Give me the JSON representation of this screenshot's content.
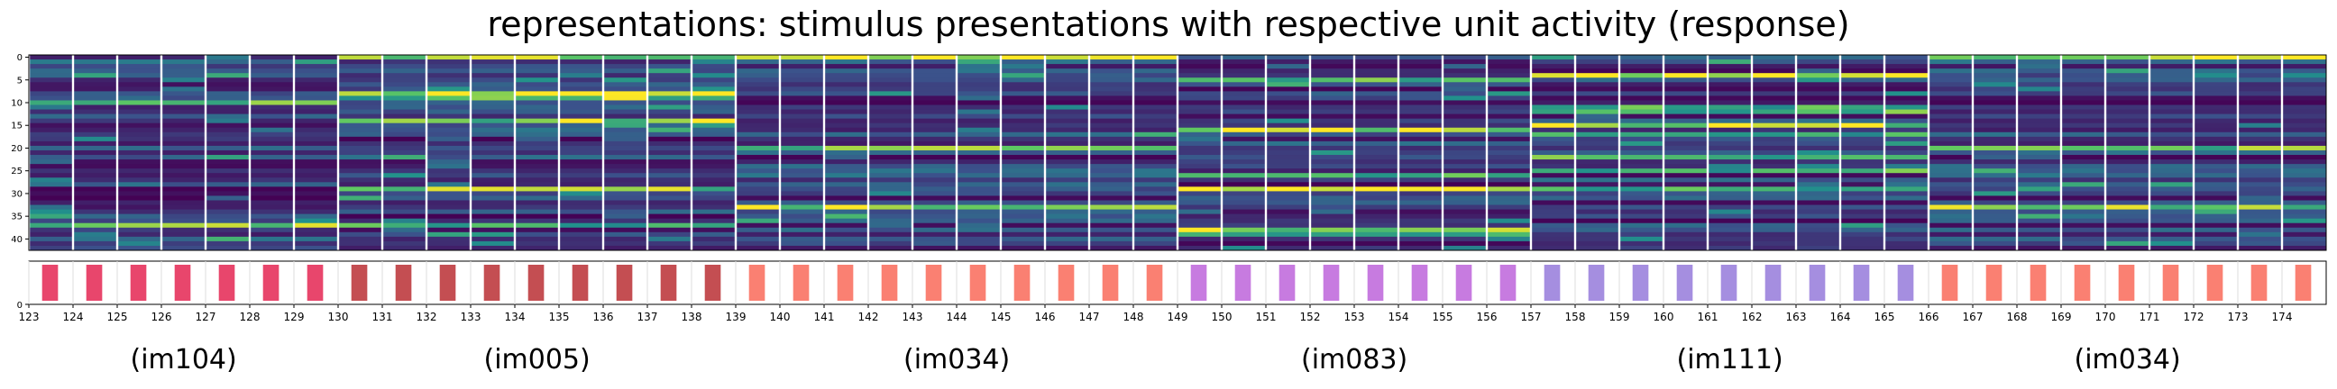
{
  "chart_data": {
    "type": "heatmap",
    "title": "representations: stimulus presentations with respective unit activity (response)",
    "heatmap": {
      "y_ticks": [
        "0",
        "5",
        "10",
        "15",
        "20",
        "25",
        "30",
        "35",
        "40"
      ],
      "n_units": 43,
      "colormap": [
        "#440154",
        "#3b528b",
        "#21918c",
        "#5ec962",
        "#fde725"
      ]
    },
    "stimulus_strip": {
      "y_tick": "0",
      "x_ticks": [
        "123",
        "124",
        "125",
        "126",
        "127",
        "128",
        "129",
        "130",
        "131",
        "132",
        "133",
        "134",
        "135",
        "136",
        "137",
        "138",
        "139",
        "140",
        "141",
        "142",
        "143",
        "144",
        "145",
        "146",
        "147",
        "148",
        "149",
        "150",
        "151",
        "152",
        "153",
        "154",
        "155",
        "156",
        "157",
        "158",
        "159",
        "160",
        "161",
        "162",
        "163",
        "164",
        "165",
        "166",
        "167",
        "168",
        "169",
        "170",
        "171",
        "172",
        "173",
        "174"
      ],
      "presentations": [
        {
          "x": 123,
          "image": "im104",
          "color": "#e8466c"
        },
        {
          "x": 124,
          "image": "im104",
          "color": "#e8466c"
        },
        {
          "x": 125,
          "image": "im104",
          "color": "#e8466c"
        },
        {
          "x": 126,
          "image": "im104",
          "color": "#e8466c"
        },
        {
          "x": 127,
          "image": "im104",
          "color": "#e8466c"
        },
        {
          "x": 128,
          "image": "im104",
          "color": "#e8466c"
        },
        {
          "x": 129,
          "image": "im104",
          "color": "#e8466c"
        },
        {
          "x": 130,
          "image": "im005",
          "color": "#c44e52"
        },
        {
          "x": 131,
          "image": "im005",
          "color": "#c44e52"
        },
        {
          "x": 132,
          "image": "im005",
          "color": "#c44e52"
        },
        {
          "x": 133,
          "image": "im005",
          "color": "#c44e52"
        },
        {
          "x": 134,
          "image": "im005",
          "color": "#c44e52"
        },
        {
          "x": 135,
          "image": "im005",
          "color": "#c44e52"
        },
        {
          "x": 136,
          "image": "im005",
          "color": "#c44e52"
        },
        {
          "x": 137,
          "image": "im005",
          "color": "#c44e52"
        },
        {
          "x": 138,
          "image": "im005",
          "color": "#c44e52"
        },
        {
          "x": 139,
          "image": "im034",
          "color": "#fa8072"
        },
        {
          "x": 140,
          "image": "im034",
          "color": "#fa8072"
        },
        {
          "x": 141,
          "image": "im034",
          "color": "#fa8072"
        },
        {
          "x": 142,
          "image": "im034",
          "color": "#fa8072"
        },
        {
          "x": 143,
          "image": "im034",
          "color": "#fa8072"
        },
        {
          "x": 144,
          "image": "im034",
          "color": "#fa8072"
        },
        {
          "x": 145,
          "image": "im034",
          "color": "#fa8072"
        },
        {
          "x": 146,
          "image": "im034",
          "color": "#fa8072"
        },
        {
          "x": 147,
          "image": "im034",
          "color": "#fa8072"
        },
        {
          "x": 148,
          "image": "im034",
          "color": "#fa8072"
        },
        {
          "x": 149,
          "image": "im083",
          "color": "#c77be0"
        },
        {
          "x": 150,
          "image": "im083",
          "color": "#c77be0"
        },
        {
          "x": 151,
          "image": "im083",
          "color": "#c77be0"
        },
        {
          "x": 152,
          "image": "im083",
          "color": "#c77be0"
        },
        {
          "x": 153,
          "image": "im083",
          "color": "#c77be0"
        },
        {
          "x": 154,
          "image": "im083",
          "color": "#c77be0"
        },
        {
          "x": 155,
          "image": "im083",
          "color": "#c77be0"
        },
        {
          "x": 156,
          "image": "im083",
          "color": "#c77be0"
        },
        {
          "x": 157,
          "image": "im111",
          "color": "#a58ee0"
        },
        {
          "x": 158,
          "image": "im111",
          "color": "#a58ee0"
        },
        {
          "x": 159,
          "image": "im111",
          "color": "#a58ee0"
        },
        {
          "x": 160,
          "image": "im111",
          "color": "#a58ee0"
        },
        {
          "x": 161,
          "image": "im111",
          "color": "#a58ee0"
        },
        {
          "x": 162,
          "image": "im111",
          "color": "#a58ee0"
        },
        {
          "x": 163,
          "image": "im111",
          "color": "#a58ee0"
        },
        {
          "x": 164,
          "image": "im111",
          "color": "#a58ee0"
        },
        {
          "x": 165,
          "image": "im111",
          "color": "#a58ee0"
        },
        {
          "x": 166,
          "image": "im034",
          "color": "#fa8072"
        },
        {
          "x": 167,
          "image": "im034",
          "color": "#fa8072"
        },
        {
          "x": 168,
          "image": "im034",
          "color": "#fa8072"
        },
        {
          "x": 169,
          "image": "im034",
          "color": "#fa8072"
        },
        {
          "x": 170,
          "image": "im034",
          "color": "#fa8072"
        },
        {
          "x": 171,
          "image": "im034",
          "color": "#fa8072"
        },
        {
          "x": 172,
          "image": "im034",
          "color": "#fa8072"
        },
        {
          "x": 173,
          "image": "im034",
          "color": "#fa8072"
        },
        {
          "x": 174,
          "image": "im034",
          "color": "#fa8072"
        }
      ]
    },
    "group_labels": [
      "(im104)",
      "(im005)",
      "(im034)",
      "(im083)",
      "(im111)",
      "(im034)"
    ],
    "xlim": [
      123,
      175
    ]
  }
}
